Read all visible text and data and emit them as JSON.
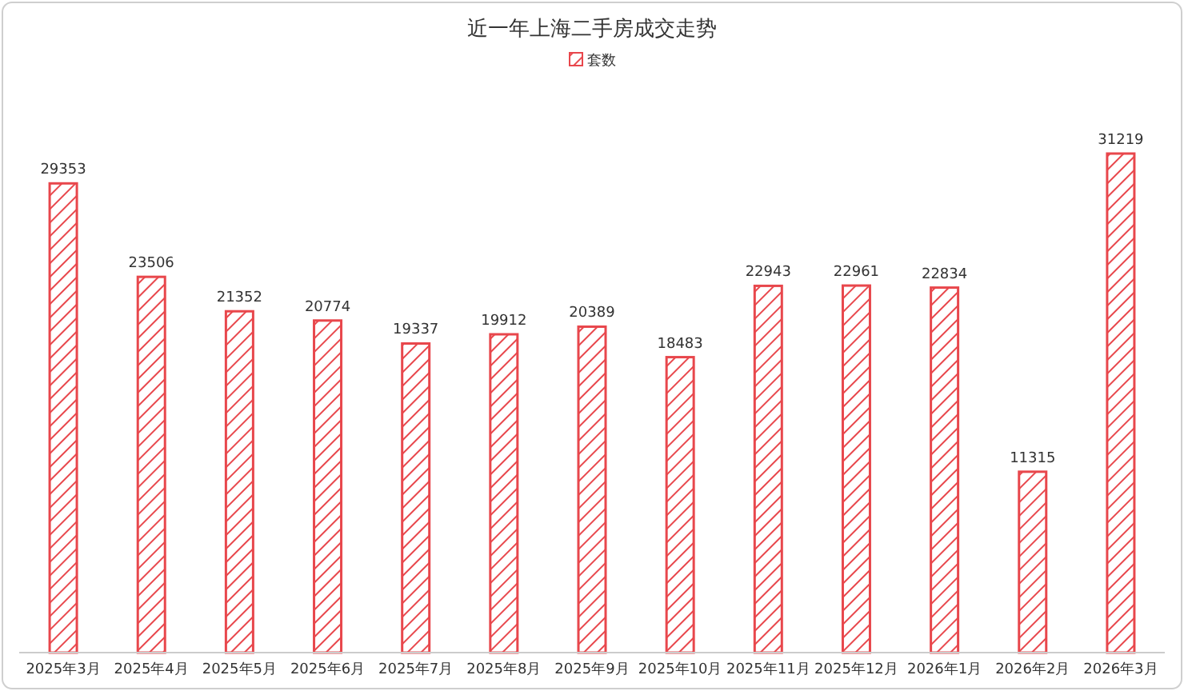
{
  "chart_data": {
    "type": "bar",
    "title": "近一年上海二手房成交走势",
    "categories": [
      "2025年3月",
      "2025年4月",
      "2025年5月",
      "2025年6月",
      "2025年7月",
      "2025年8月",
      "2025年9月",
      "2025年10月",
      "2025年11月",
      "2025年12月",
      "2026年1月",
      "2026年2月",
      "2026年3月"
    ],
    "series": [
      {
        "name": "套数",
        "color": "#e8474c",
        "values": [
          29353,
          23506,
          21352,
          20774,
          19337,
          19912,
          20389,
          18483,
          22943,
          22961,
          22834,
          11315,
          31219
        ]
      }
    ],
    "data_labels": true,
    "legend": "top",
    "grid": false
  }
}
